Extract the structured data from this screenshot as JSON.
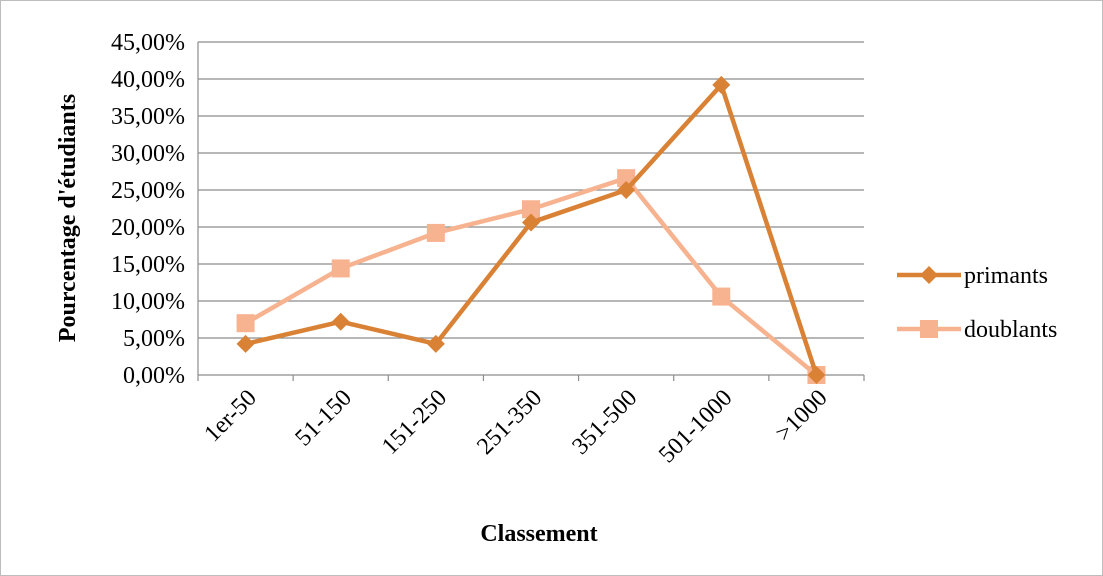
{
  "chart_data": {
    "type": "line",
    "title": "",
    "xlabel": "Classement",
    "ylabel": "Pourcentage d'étudiants",
    "categories": [
      "1er-50",
      "51-150",
      "151-250",
      "251-350",
      "351-500",
      "501-1000",
      ">1000"
    ],
    "y_ticks": [
      "0,00%",
      "5,00%",
      "10,00%",
      "15,00%",
      "20,00%",
      "25,00%",
      "30,00%",
      "35,00%",
      "40,00%",
      "45,00%"
    ],
    "ylim": [
      0,
      45
    ],
    "grid": true,
    "legend_position": "right",
    "series": [
      {
        "name": "primants",
        "color": "#D98236",
        "marker": "diamond",
        "values": [
          4.2,
          7.2,
          4.2,
          20.6,
          25.0,
          39.2,
          0.0
        ]
      },
      {
        "name": "doublants",
        "color": "#F7B28F",
        "marker": "square",
        "values": [
          7.0,
          14.4,
          19.2,
          22.4,
          26.6,
          10.6,
          0.0
        ]
      }
    ]
  }
}
